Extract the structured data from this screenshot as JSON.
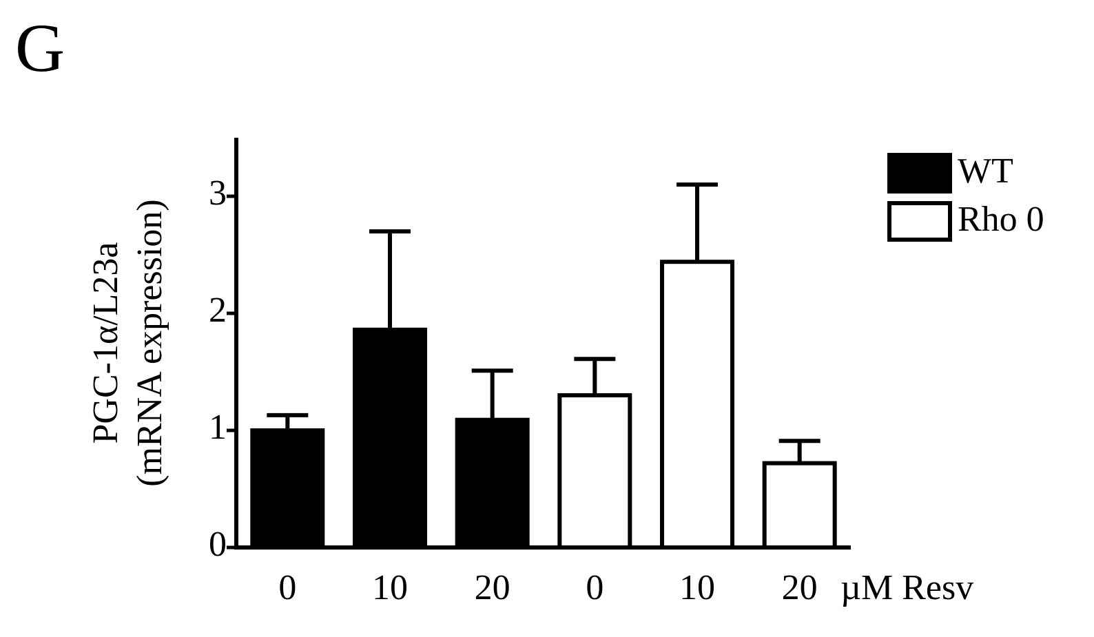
{
  "chart_data": {
    "type": "bar",
    "panel_label": "G",
    "y_label": [
      "PGC-1α/L23a",
      "(mRNA expression)"
    ],
    "x_label": "µM Resv",
    "categories": [
      "0",
      "10",
      "20",
      "0",
      "10",
      "20"
    ],
    "series": [
      {
        "name": "WT",
        "color": "#000000",
        "values": [
          1.0,
          1.86,
          1.09,
          null,
          null,
          null
        ],
        "errors": [
          0.13,
          0.84,
          0.42,
          null,
          null,
          null
        ]
      },
      {
        "name": "Rho 0",
        "color": "#ffffff",
        "values": [
          null,
          null,
          null,
          1.3,
          2.44,
          0.72
        ],
        "errors": [
          null,
          null,
          null,
          0.31,
          0.66,
          0.19
        ]
      }
    ],
    "ylim": [
      0,
      3.5
    ],
    "yticks": [
      0,
      1,
      2,
      3
    ],
    "grid": false,
    "legend": "top-right"
  }
}
